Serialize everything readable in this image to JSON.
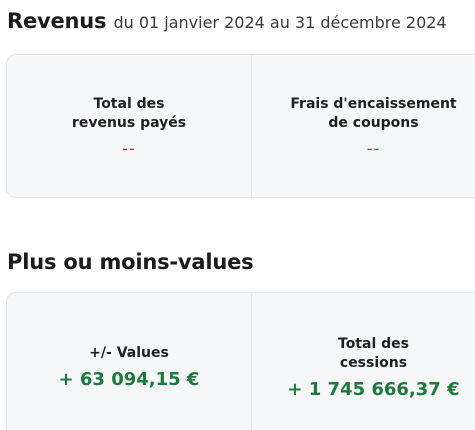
{
  "revenus": {
    "title": "Revenus",
    "period": "du 01 janvier 2024 au 31 décembre 2024",
    "cells": [
      {
        "label": "Total des\nrevenus payés",
        "value": "--"
      },
      {
        "label": "Frais d'encaissement\nde coupons",
        "value": "--"
      }
    ]
  },
  "plus_moins_values": {
    "title": "Plus ou moins-values",
    "cells": [
      {
        "label": "+/- Values",
        "value": "+ 63 094,15 €"
      },
      {
        "label": "Total des\ncessions",
        "value": "+ 1 745 666,37 €"
      }
    ]
  },
  "colors": {
    "positive": "#1e7a3c",
    "empty": "#b03a2e",
    "card_bg": "#f6f7f9"
  }
}
